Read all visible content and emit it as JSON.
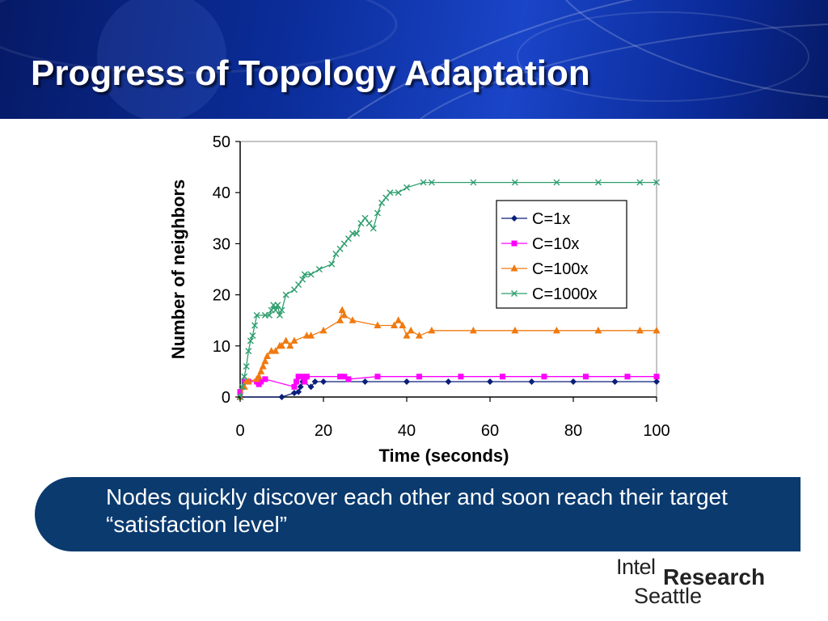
{
  "slide": {
    "title": "Progress of Topology Adaptation",
    "callout": "Nodes quickly discover each other and soon reach their target “satisfaction level”",
    "logo": {
      "line1": "Intel",
      "line2": "Research",
      "line3": "Seattle"
    }
  },
  "colors": {
    "header": "#0b2d9a",
    "callout": "#0a3a6e",
    "c1x": "#0a1f7a",
    "c10x": "#ff00ff",
    "c100x": "#f07a10",
    "c1000x": "#2e9e6e"
  },
  "chart_data": {
    "type": "line",
    "title": "",
    "xlabel": "Time (seconds)",
    "ylabel": "Number of neighbors",
    "xlim": [
      0,
      100
    ],
    "ylim": [
      0,
      50
    ],
    "xticks": [
      0,
      20,
      40,
      60,
      80,
      100
    ],
    "yticks": [
      0,
      10,
      20,
      30,
      40,
      50
    ],
    "grid": false,
    "legend": "right",
    "series": [
      {
        "name": "C=1x",
        "marker": "diamond",
        "color": "#0a1f7a",
        "points": [
          [
            0,
            0
          ],
          [
            10,
            0
          ],
          [
            13,
            0.8
          ],
          [
            14,
            1
          ],
          [
            14.5,
            2
          ],
          [
            15,
            3
          ],
          [
            17,
            2
          ],
          [
            18,
            3
          ],
          [
            20,
            3
          ],
          [
            30,
            3
          ],
          [
            40,
            3
          ],
          [
            50,
            3
          ],
          [
            60,
            3
          ],
          [
            70,
            3
          ],
          [
            80,
            3
          ],
          [
            90,
            3
          ],
          [
            100,
            3
          ]
        ]
      },
      {
        "name": "C=10x",
        "marker": "square",
        "color": "#ff00ff",
        "points": [
          [
            0,
            1
          ],
          [
            1,
            3
          ],
          [
            2,
            3
          ],
          [
            4,
            3
          ],
          [
            4.5,
            2.5
          ],
          [
            5,
            3
          ],
          [
            6,
            3.5
          ],
          [
            13,
            2
          ],
          [
            13.5,
            3
          ],
          [
            14,
            4
          ],
          [
            15,
            4
          ],
          [
            15.5,
            3
          ],
          [
            16,
            4
          ],
          [
            24,
            4
          ],
          [
            25,
            4
          ],
          [
            26,
            3.5
          ],
          [
            33,
            4
          ],
          [
            43,
            4
          ],
          [
            53,
            4
          ],
          [
            63,
            4
          ],
          [
            73,
            4
          ],
          [
            83,
            4
          ],
          [
            93,
            4
          ],
          [
            100,
            4
          ]
        ]
      },
      {
        "name": "C=100x",
        "marker": "triangle",
        "color": "#f07a10",
        "points": [
          [
            0,
            0
          ],
          [
            1,
            2
          ],
          [
            1.5,
            3
          ],
          [
            2,
            3
          ],
          [
            4,
            3.5
          ],
          [
            4.5,
            4
          ],
          [
            5,
            5
          ],
          [
            5.5,
            6
          ],
          [
            6,
            7
          ],
          [
            6.5,
            8
          ],
          [
            7.5,
            9
          ],
          [
            8.5,
            9
          ],
          [
            9.5,
            10
          ],
          [
            10,
            10
          ],
          [
            11,
            11
          ],
          [
            12,
            10
          ],
          [
            13,
            11
          ],
          [
            16,
            12
          ],
          [
            17,
            12
          ],
          [
            20,
            13
          ],
          [
            24,
            15
          ],
          [
            24.5,
            17
          ],
          [
            25,
            16
          ],
          [
            27,
            15
          ],
          [
            33,
            14
          ],
          [
            37,
            14
          ],
          [
            38,
            15
          ],
          [
            39,
            14
          ],
          [
            40,
            12
          ],
          [
            41,
            13
          ],
          [
            43,
            12
          ],
          [
            46,
            13
          ],
          [
            56,
            13
          ],
          [
            66,
            13
          ],
          [
            76,
            13
          ],
          [
            86,
            13
          ],
          [
            96,
            13
          ],
          [
            100,
            13
          ]
        ]
      },
      {
        "name": "C=1000x",
        "marker": "x",
        "color": "#2e9e6e",
        "points": [
          [
            0,
            0
          ],
          [
            0.5,
            2
          ],
          [
            1,
            4
          ],
          [
            1.5,
            6
          ],
          [
            2,
            9
          ],
          [
            2.5,
            11
          ],
          [
            3,
            12
          ],
          [
            3.5,
            14
          ],
          [
            4,
            16
          ],
          [
            6,
            16
          ],
          [
            7,
            16
          ],
          [
            7.5,
            17
          ],
          [
            8,
            18
          ],
          [
            8.5,
            17
          ],
          [
            9,
            18
          ],
          [
            9.5,
            16
          ],
          [
            10,
            17
          ],
          [
            11,
            20
          ],
          [
            13,
            21
          ],
          [
            14,
            22
          ],
          [
            15,
            23
          ],
          [
            15.5,
            24
          ],
          [
            17,
            24
          ],
          [
            19,
            25
          ],
          [
            22,
            26
          ],
          [
            23,
            28
          ],
          [
            24,
            29
          ],
          [
            25,
            30
          ],
          [
            26,
            31
          ],
          [
            27,
            32
          ],
          [
            28,
            32
          ],
          [
            29,
            34
          ],
          [
            30,
            35
          ],
          [
            31,
            34
          ],
          [
            32,
            33
          ],
          [
            33,
            36
          ],
          [
            34,
            38
          ],
          [
            35,
            39
          ],
          [
            36,
            40
          ],
          [
            38,
            40
          ],
          [
            40,
            41
          ],
          [
            44,
            42
          ],
          [
            46,
            42
          ],
          [
            56,
            42
          ],
          [
            66,
            42
          ],
          [
            76,
            42
          ],
          [
            86,
            42
          ],
          [
            96,
            42
          ],
          [
            100,
            42
          ]
        ]
      }
    ]
  }
}
